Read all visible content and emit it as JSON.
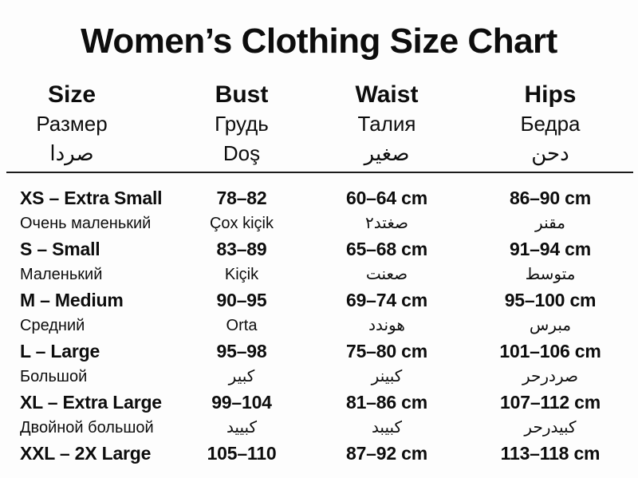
{
  "page": {
    "title": "Women’s Clothing Size Chart"
  },
  "table": {
    "headers": [
      {
        "en": "Size",
        "ru": "Размер",
        "other": "صردا"
      },
      {
        "en": "Bust",
        "ru": "Грудь",
        "other": "Doş"
      },
      {
        "en": "Waist",
        "ru": "Талия",
        "other": "صغير"
      },
      {
        "en": "Hips",
        "ru": "Бедра",
        "other": "دحن"
      }
    ],
    "rows": [
      {
        "cells": [
          {
            "main": "XS – Extra Small",
            "sub": "Очень маленький"
          },
          {
            "main": "78–82",
            "sub": "Çox kiçik"
          },
          {
            "main": "60–64 cm",
            "sub": "صغتد٢"
          },
          {
            "main": "86–90 cm",
            "sub": "مقنر"
          }
        ]
      },
      {
        "cells": [
          {
            "main": "S – Small",
            "sub": "Маленький"
          },
          {
            "main": "83–89",
            "sub": "Kiçik"
          },
          {
            "main": "65–68 cm",
            "sub": "صعنت"
          },
          {
            "main": "91–94 cm",
            "sub": "متوسط"
          }
        ]
      },
      {
        "cells": [
          {
            "main": "M – Medium",
            "sub": "Средний"
          },
          {
            "main": "90–95",
            "sub": "Orta"
          },
          {
            "main": "69–74 cm",
            "sub": "هوندد"
          },
          {
            "main": "95–100 cm",
            "sub": "مبرس"
          }
        ]
      },
      {
        "cells": [
          {
            "main": "L – Large",
            "sub": "Большой"
          },
          {
            "main": "95–98",
            "sub": "كبير"
          },
          {
            "main": "75–80 cm",
            "sub": "كبينر"
          },
          {
            "main": "101–106 cm",
            "sub": "صردرحر"
          }
        ]
      },
      {
        "cells": [
          {
            "main": "XL – Extra Large",
            "sub": "Двойной большой"
          },
          {
            "main": "99–104",
            "sub": "كبييد"
          },
          {
            "main": "81–86 cm",
            "sub": "كبيبد"
          },
          {
            "main": "107–112 cm",
            "sub": "كبيدرحر"
          }
        ]
      },
      {
        "cells": [
          {
            "main": "XXL – 2X Large",
            "sub": ""
          },
          {
            "main": "105–110",
            "sub": ""
          },
          {
            "main": "87–92 cm",
            "sub": ""
          },
          {
            "main": "113–118 cm",
            "sub": ""
          }
        ]
      }
    ]
  }
}
